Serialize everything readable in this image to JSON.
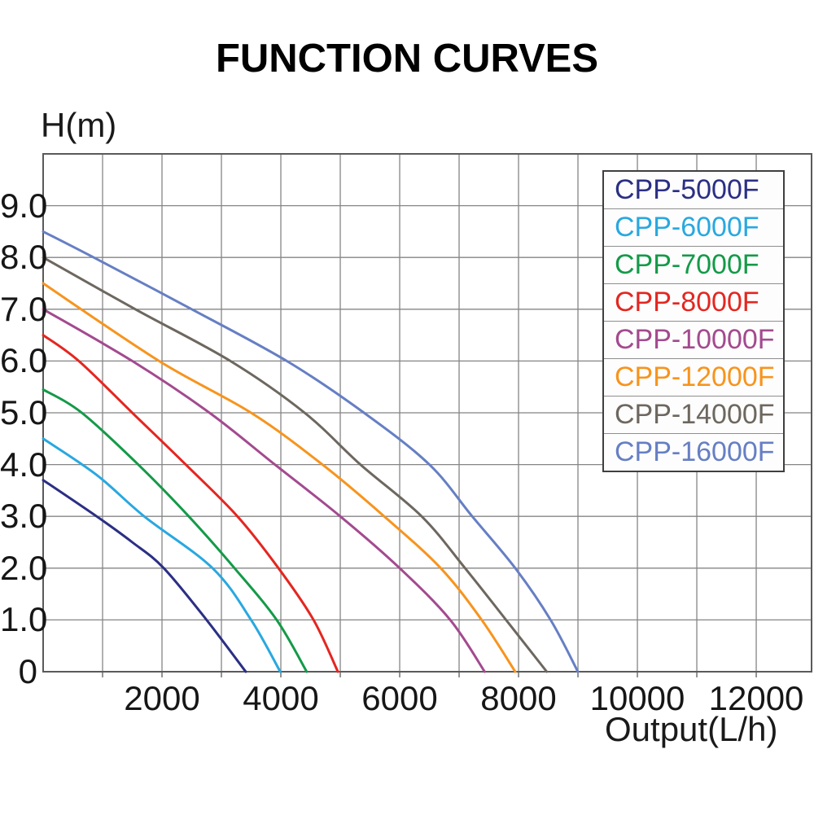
{
  "title": "FUNCTION CURVES",
  "axes": {
    "y_label": "H(m)",
    "x_label": "Output(L/h)",
    "x_ticks": [
      {
        "value": 2000,
        "label": "2000"
      },
      {
        "value": 4000,
        "label": "4000"
      },
      {
        "value": 6000,
        "label": "6000"
      },
      {
        "value": 8000,
        "label": "8000"
      },
      {
        "value": 10000,
        "label": "10000"
      },
      {
        "value": 12000,
        "label": "12000"
      }
    ],
    "y_ticks": [
      {
        "value": 9,
        "label": "9.0"
      },
      {
        "value": 8,
        "label": "8.0"
      },
      {
        "value": 7,
        "label": "7.0"
      },
      {
        "value": 6,
        "label": "6.0"
      },
      {
        "value": 5,
        "label": "5.0"
      },
      {
        "value": 4,
        "label": "4.0"
      },
      {
        "value": 3,
        "label": "3.0"
      },
      {
        "value": 2,
        "label": "2.0"
      },
      {
        "value": 1,
        "label": "1.0"
      },
      {
        "value": 0,
        "label": "0"
      }
    ]
  },
  "colors": {
    "background": "#ffffff",
    "grid": "#858585",
    "border": "#5a5a5a",
    "text": "#000000"
  },
  "legend": {
    "position": "top-right",
    "items": [
      {
        "label": "CPP-5000F",
        "color": "#2b2f84"
      },
      {
        "label": "CPP-6000F",
        "color": "#29a8e0"
      },
      {
        "label": "CPP-7000F",
        "color": "#149a48"
      },
      {
        "label": "CPP-8000F",
        "color": "#e42620"
      },
      {
        "label": "CPP-10000F",
        "color": "#a34a8f"
      },
      {
        "label": "CPP-12000F",
        "color": "#f7941d"
      },
      {
        "label": "CPP-14000F",
        "color": "#6d675f"
      },
      {
        "label": "CPP-16000F",
        "color": "#667fc4"
      }
    ]
  },
  "chart_data": {
    "type": "line",
    "title": "FUNCTION CURVES",
    "xlabel": "Output(L/h)",
    "ylabel": "H(m)",
    "xlim": [
      0,
      12931
    ],
    "ylim": [
      0,
      10
    ],
    "x_gridline_step": 1000,
    "x_gridline_max": 12000,
    "y_gridline_step": 1,
    "y_gridline_max": 9,
    "grid": true,
    "legend_position": "top-right",
    "series": [
      {
        "name": "CPP-5000F",
        "color": "#2b2f84",
        "points": [
          [
            0,
            3.7
          ],
          [
            900,
            3.0
          ],
          [
            1500,
            2.5
          ],
          [
            2030,
            2.0
          ],
          [
            2750,
            1.0
          ],
          [
            3410,
            0
          ]
        ]
      },
      {
        "name": "CPP-6000F",
        "color": "#29a8e0",
        "points": [
          [
            0,
            4.5
          ],
          [
            900,
            3.8
          ],
          [
            1700,
            3.0
          ],
          [
            2850,
            2.0
          ],
          [
            3500,
            1.0
          ],
          [
            3990,
            0
          ]
        ]
      },
      {
        "name": "CPP-7000F",
        "color": "#149a48",
        "points": [
          [
            0,
            5.45
          ],
          [
            650,
            5.0
          ],
          [
            1600,
            4.0
          ],
          [
            2450,
            3.0
          ],
          [
            3220,
            2.0
          ],
          [
            3930,
            1.0
          ],
          [
            4435,
            0
          ]
        ]
      },
      {
        "name": "CPP-8000F",
        "color": "#e42620",
        "points": [
          [
            0,
            6.5
          ],
          [
            600,
            6.0
          ],
          [
            1500,
            5.0
          ],
          [
            2400,
            4.0
          ],
          [
            3270,
            3.0
          ],
          [
            3960,
            2.0
          ],
          [
            4550,
            1.0
          ],
          [
            4960,
            0
          ]
        ]
      },
      {
        "name": "CPP-10000F",
        "color": "#a34a8f",
        "points": [
          [
            0,
            7.0
          ],
          [
            1500,
            6.0
          ],
          [
            2800,
            5.0
          ],
          [
            3900,
            4.0
          ],
          [
            5000,
            3.0
          ],
          [
            6000,
            2.0
          ],
          [
            6850,
            1.0
          ],
          [
            7430,
            0
          ]
        ]
      },
      {
        "name": "CPP-12000F",
        "color": "#f7941d",
        "points": [
          [
            0,
            7.5
          ],
          [
            1950,
            6.0
          ],
          [
            3500,
            5.0
          ],
          [
            4700,
            4.0
          ],
          [
            5740,
            3.0
          ],
          [
            6690,
            2.0
          ],
          [
            7380,
            1.0
          ],
          [
            7945,
            0
          ]
        ]
      },
      {
        "name": "CPP-14000F",
        "color": "#6d675f",
        "points": [
          [
            0,
            8.0
          ],
          [
            1550,
            7.0
          ],
          [
            3150,
            6.0
          ],
          [
            4400,
            5.0
          ],
          [
            5340,
            4.0
          ],
          [
            6370,
            3.0
          ],
          [
            7100,
            2.0
          ],
          [
            7790,
            1.0
          ],
          [
            8475,
            0
          ]
        ]
      },
      {
        "name": "CPP-16000F",
        "color": "#667fc4",
        "points": [
          [
            0,
            8.5
          ],
          [
            850,
            8.0
          ],
          [
            2500,
            7.0
          ],
          [
            4100,
            6.0
          ],
          [
            5400,
            5.0
          ],
          [
            6500,
            4.0
          ],
          [
            7220,
            3.0
          ],
          [
            7945,
            2.0
          ],
          [
            8540,
            1.0
          ],
          [
            9000,
            0
          ]
        ]
      }
    ]
  }
}
